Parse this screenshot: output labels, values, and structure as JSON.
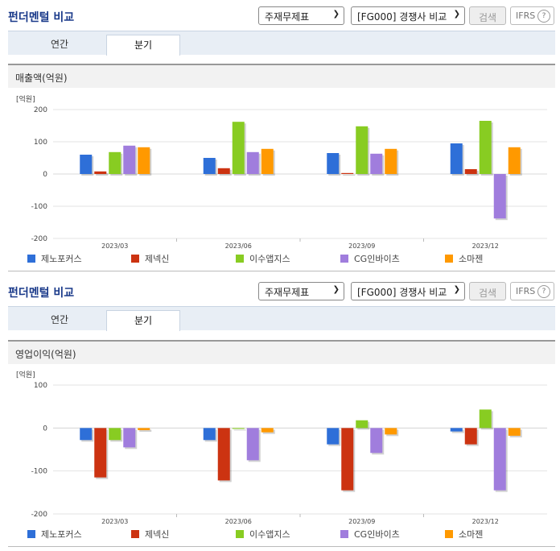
{
  "sections": [
    {
      "title": "펀더멘털 비교",
      "select1": "주재무제표",
      "select2": "[FG000] 경쟁사 비교",
      "search_label": "검색",
      "ifrs_label": "IFRS",
      "help_glyph": "?",
      "tabs": [
        "연간",
        "분기"
      ],
      "active_tab": "분기",
      "panel_title": "매출액(억원)",
      "unit": "[억원]"
    },
    {
      "title": "펀더멘털 비교",
      "select1": "주재무제표",
      "select2": "[FG000] 경쟁사 비교",
      "search_label": "검색",
      "ifrs_label": "IFRS",
      "help_glyph": "?",
      "tabs": [
        "연간",
        "분기"
      ],
      "active_tab": "분기",
      "panel_title": "영업이익(억원)",
      "unit": "[억원]"
    }
  ],
  "chart_data": [
    {
      "type": "bar",
      "title": "매출액(억원)",
      "ylabel": "[억원]",
      "categories": [
        "2023/03",
        "2023/06",
        "2023/09",
        "2023/12"
      ],
      "ylim": [
        -200,
        200
      ],
      "yticks": [
        200,
        100,
        0,
        -100,
        -200
      ],
      "series": [
        {
          "name": "제노포커스",
          "color": "#2e6fd8",
          "values": [
            60,
            50,
            65,
            95
          ]
        },
        {
          "name": "제넥신",
          "color": "#cc3311",
          "values": [
            8,
            18,
            3,
            15
          ]
        },
        {
          "name": "이수앱지스",
          "color": "#88cc22",
          "values": [
            68,
            162,
            148,
            165
          ]
        },
        {
          "name": "CG인바이츠",
          "color": "#a07ddd",
          "values": [
            88,
            68,
            63,
            -138
          ]
        },
        {
          "name": "소마젠",
          "color": "#ff9900",
          "values": [
            83,
            78,
            78,
            83
          ]
        }
      ]
    },
    {
      "type": "bar",
      "title": "영업이익(억원)",
      "ylabel": "[억원]",
      "categories": [
        "2023/03",
        "2023/06",
        "2023/09",
        "2023/12"
      ],
      "ylim": [
        -200,
        100
      ],
      "yticks": [
        100,
        0,
        -100,
        -200
      ],
      "series": [
        {
          "name": "제노포커스",
          "color": "#2e6fd8",
          "values": [
            -28,
            -28,
            -38,
            -8
          ]
        },
        {
          "name": "제넥신",
          "color": "#cc3311",
          "values": [
            -115,
            -122,
            -145,
            -38
          ]
        },
        {
          "name": "이수앱지스",
          "color": "#88cc22",
          "values": [
            -28,
            -2,
            18,
            43
          ]
        },
        {
          "name": "CG인바이츠",
          "color": "#a07ddd",
          "values": [
            -45,
            -75,
            -58,
            -145
          ]
        },
        {
          "name": "소마젠",
          "color": "#ff9900",
          "values": [
            -5,
            -10,
            -15,
            -18
          ]
        }
      ]
    }
  ]
}
